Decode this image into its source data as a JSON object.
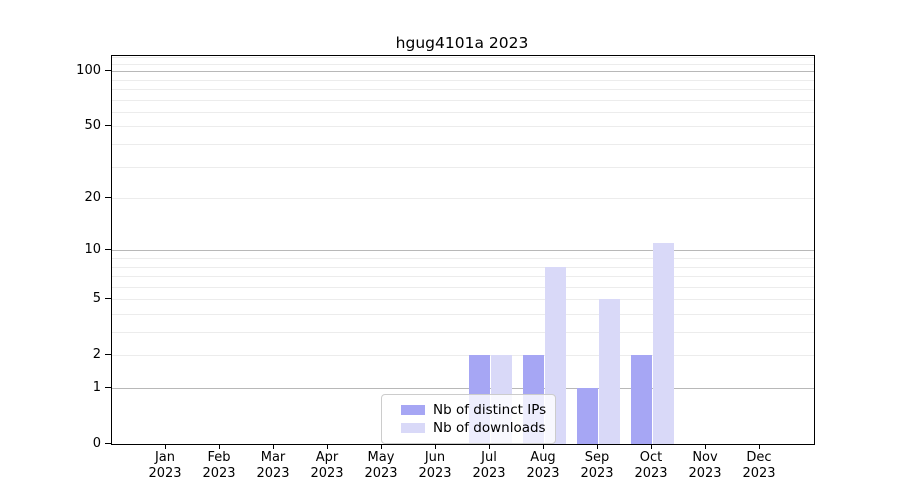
{
  "chart_data": {
    "type": "bar",
    "title": "hgug4101a 2023",
    "year": "2023",
    "months": [
      "Jan",
      "Feb",
      "Mar",
      "Apr",
      "May",
      "Jun",
      "Jul",
      "Aug",
      "Sep",
      "Oct",
      "Nov",
      "Dec"
    ],
    "categories": [
      "Jan 2023",
      "Feb 2023",
      "Mar 2023",
      "Apr 2023",
      "May 2023",
      "Jun 2023",
      "Jul 2023",
      "Aug 2023",
      "Sep 2023",
      "Oct 2023",
      "Nov 2023",
      "Dec 2023"
    ],
    "series": [
      {
        "name": "Nb of distinct IPs",
        "color": "#a6a6f4",
        "values": [
          0,
          0,
          0,
          0,
          0,
          0,
          2,
          2,
          1,
          2,
          0,
          0
        ]
      },
      {
        "name": "Nb of downloads",
        "color": "#d9d9f8",
        "values": [
          0,
          0,
          0,
          0,
          0,
          0,
          2,
          8,
          5,
          11,
          0,
          0
        ]
      }
    ],
    "y_scale": "log1p",
    "y_ticks": [
      0,
      1,
      2,
      5,
      10,
      20,
      50,
      100
    ],
    "y_max": 121,
    "ylim": [
      0,
      121
    ],
    "major_gridlines": [
      1,
      10,
      100
    ],
    "minor_gridlines": [
      2,
      3,
      4,
      5,
      6,
      7,
      8,
      9,
      20,
      30,
      40,
      50,
      60,
      70,
      80,
      90,
      110,
      120
    ],
    "grid": true,
    "legend_position": "lower center"
  },
  "colors": {
    "background": "#ffffff",
    "spine": "#000000",
    "text": "#000000",
    "major_grid": "#b8b8b8",
    "minor_grid": "#ececec",
    "legend_border": "#cccccc",
    "legend_bg": "rgba(255,255,255,0.8)"
  }
}
